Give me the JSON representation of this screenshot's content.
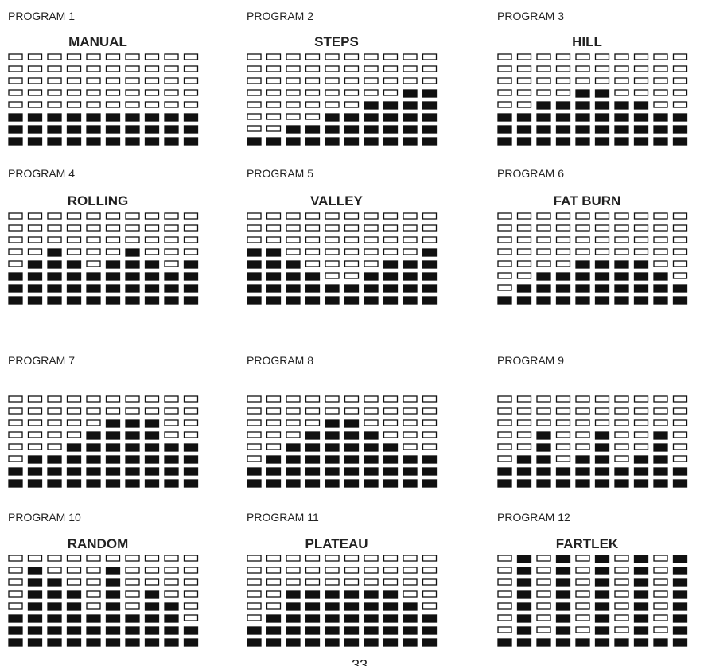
{
  "rows": 8,
  "programs": [
    {
      "label": "PROGRAM 1",
      "name": "MANUAL",
      "levels": [
        3,
        3,
        3,
        3,
        3,
        3,
        3,
        3,
        3,
        3
      ]
    },
    {
      "label": "PROGRAM 2",
      "name": "STEPS",
      "levels": [
        1,
        1,
        2,
        2,
        3,
        3,
        4,
        4,
        5,
        5
      ]
    },
    {
      "label": "PROGRAM 3",
      "name": "HILL",
      "levels": [
        3,
        3,
        4,
        4,
        5,
        5,
        4,
        4,
        3,
        3
      ]
    },
    {
      "label": "PROGRAM 4",
      "name": "ROLLING",
      "levels": [
        3,
        4,
        5,
        4,
        3,
        4,
        5,
        4,
        3,
        4
      ]
    },
    {
      "label": "PROGRAM 5",
      "name": "VALLEY",
      "levels": [
        5,
        5,
        4,
        3,
        2,
        2,
        3,
        4,
        4,
        5
      ]
    },
    {
      "label": "PROGRAM 6",
      "name": "FAT BURN",
      "levels": [
        1,
        2,
        3,
        3,
        4,
        4,
        4,
        4,
        3,
        2
      ]
    },
    {
      "label": "PROGRAM 7",
      "levels": [
        2,
        3,
        3,
        4,
        5,
        6,
        6,
        6,
        4,
        4
      ]
    },
    {
      "label": "PROGRAM 8",
      "levels": [
        2,
        3,
        4,
        5,
        6,
        6,
        5,
        4,
        3,
        3
      ]
    },
    {
      "label": "PROGRAM 9",
      "levels": [
        2,
        3,
        5,
        2,
        3,
        5,
        2,
        3,
        5,
        2
      ]
    },
    {
      "label": "PROGRAM 10",
      "name": "RANDOM",
      "levels": [
        3,
        7,
        6,
        5,
        3,
        7,
        3,
        5,
        4,
        2
      ]
    },
    {
      "label": "PROGRAM 11",
      "name": "PLATEAU",
      "levels": [
        2,
        3,
        5,
        5,
        5,
        5,
        5,
        5,
        4,
        3
      ]
    },
    {
      "label": "PROGRAM 12",
      "name": "FARTLEK",
      "levels": [
        1,
        8,
        1,
        8,
        1,
        8,
        1,
        8,
        1,
        8
      ]
    }
  ],
  "page_number": "33"
}
